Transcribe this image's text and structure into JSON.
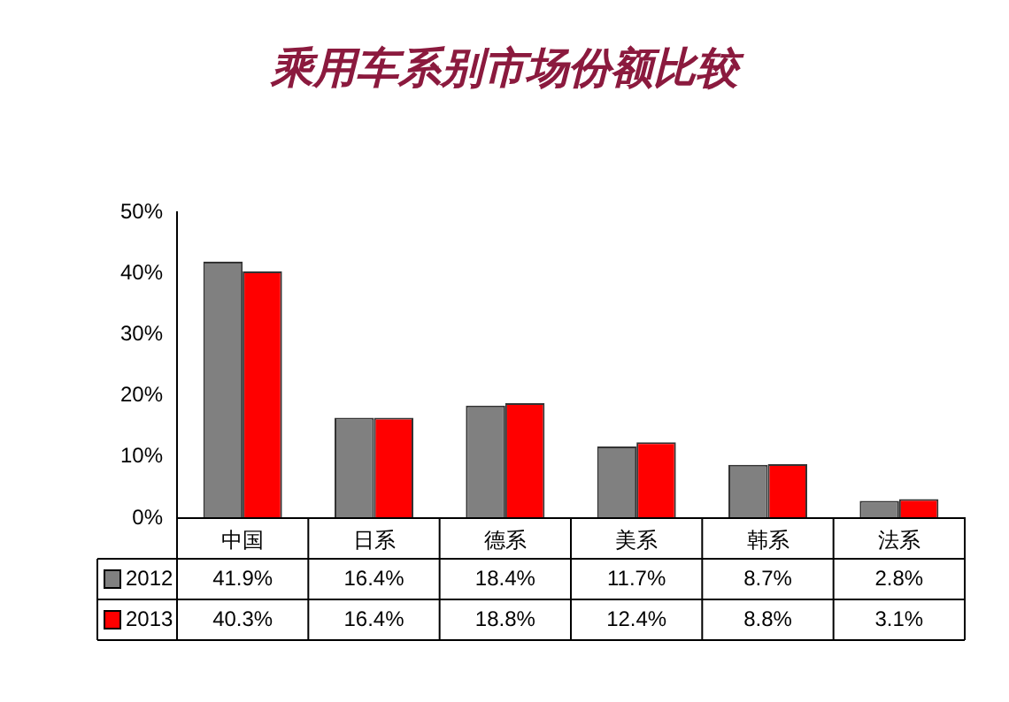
{
  "chart_data": {
    "type": "bar",
    "title": "乘用车系别市场份额比较",
    "categories": [
      "中国",
      "日系",
      "德系",
      "美系",
      "韩系",
      "法系"
    ],
    "series": [
      {
        "name": "2012",
        "color": "#808080",
        "values": [
          41.9,
          16.4,
          18.4,
          11.7,
          8.7,
          2.8
        ],
        "value_labels": [
          "41.9%",
          "16.4%",
          "18.4%",
          "11.7%",
          "8.7%",
          "2.8%"
        ]
      },
      {
        "name": "2013",
        "color": "#ff0000",
        "values": [
          40.3,
          16.4,
          18.8,
          12.4,
          8.8,
          3.1
        ],
        "value_labels": [
          "40.3%",
          "16.4%",
          "18.8%",
          "12.4%",
          "8.8%",
          "3.1%"
        ]
      }
    ],
    "ylim": [
      0,
      50
    ],
    "yticks": [
      {
        "value": 0,
        "label": "0%"
      },
      {
        "value": 10,
        "label": "10%"
      },
      {
        "value": 20,
        "label": "20%"
      },
      {
        "value": 30,
        "label": "30%"
      },
      {
        "value": 40,
        "label": "40%"
      },
      {
        "value": 50,
        "label": "50%"
      }
    ],
    "grid": false,
    "legend": "bottom left"
  }
}
